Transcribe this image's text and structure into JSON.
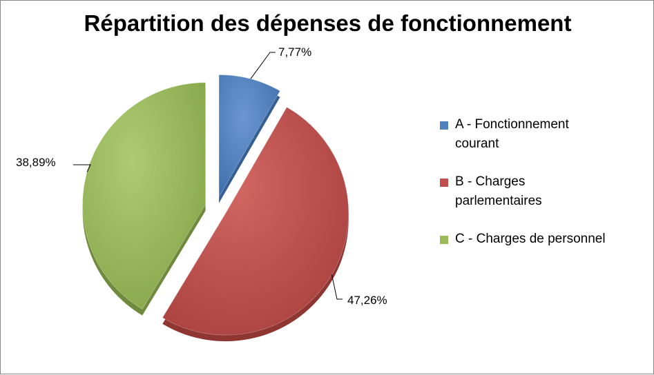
{
  "chart_data": {
    "type": "pie",
    "title": "Répartition des dépenses de fonctionnement",
    "categories": [
      "A - Fonctionnement courant",
      "B - Charges parlementaires",
      "C - Charges de personnel"
    ],
    "values": [
      7.77,
      47.26,
      38.89
    ],
    "data_labels": [
      "7,77%",
      "47,26%",
      "38,89%"
    ],
    "colors": [
      "#4f81bd",
      "#c0504d",
      "#9bbb59"
    ],
    "exploded": true,
    "legend_position": "right"
  }
}
